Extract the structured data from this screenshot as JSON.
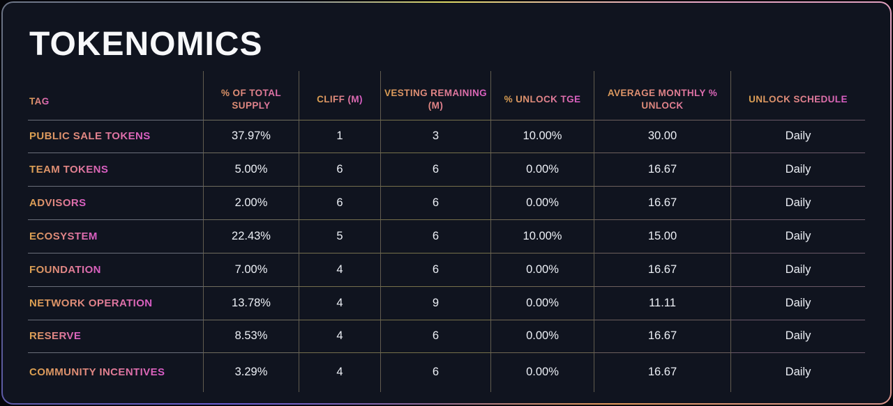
{
  "card": {
    "title": "TOKENOMICS"
  },
  "table": {
    "columns": [
      {
        "key": "tag",
        "label": "TAG"
      },
      {
        "key": "supply",
        "label": "% OF TOTAL SUPPLY"
      },
      {
        "key": "cliff",
        "label": "CLIFF (M)"
      },
      {
        "key": "vesting",
        "label": "VESTING REMAINING (M)"
      },
      {
        "key": "tge",
        "label": "% UNLOCK TGE"
      },
      {
        "key": "monthly",
        "label": "AVERAGE MONTHLY % UNLOCK"
      },
      {
        "key": "schedule",
        "label": "UNLOCK SCHEDULE"
      }
    ],
    "rows": [
      {
        "tag": "PUBLIC SALE TOKENS",
        "supply": "37.97%",
        "cliff": "1",
        "vesting": "3",
        "tge": "10.00%",
        "monthly": "30.00",
        "schedule": "Daily"
      },
      {
        "tag": "TEAM TOKENS",
        "supply": "5.00%",
        "cliff": "6",
        "vesting": "6",
        "tge": "0.00%",
        "monthly": "16.67",
        "schedule": "Daily"
      },
      {
        "tag": "ADVISORS",
        "supply": "2.00%",
        "cliff": "6",
        "vesting": "6",
        "tge": "0.00%",
        "monthly": "16.67",
        "schedule": "Daily"
      },
      {
        "tag": "ECOSYSTEM",
        "supply": "22.43%",
        "cliff": "5",
        "vesting": "6",
        "tge": "10.00%",
        "monthly": "15.00",
        "schedule": "Daily"
      },
      {
        "tag": "FOUNDATION",
        "supply": "7.00%",
        "cliff": "4",
        "vesting": "6",
        "tge": "0.00%",
        "monthly": "16.67",
        "schedule": "Daily"
      },
      {
        "tag": "NETWORK OPERATION",
        "supply": "13.78%",
        "cliff": "4",
        "vesting": "9",
        "tge": "0.00%",
        "monthly": "11.11",
        "schedule": "Daily"
      },
      {
        "tag": "RESERVE",
        "supply": "8.53%",
        "cliff": "4",
        "vesting": "6",
        "tge": "0.00%",
        "monthly": "16.67",
        "schedule": "Daily"
      },
      {
        "tag": "COMMUNITY INCENTIVES",
        "supply": "3.29%",
        "cliff": "4",
        "vesting": "6",
        "tge": "0.00%",
        "monthly": "16.67",
        "schedule": "Daily"
      }
    ]
  },
  "colors": {
    "card_background": "#10141F",
    "accent_gold": "#DCA24F",
    "accent_pink": "#D95BC9",
    "value_text": "#EDF0F6",
    "border_yellow": "#DED964",
    "border_purple": "#6C5FD6",
    "border_orange": "#E69A5C"
  }
}
